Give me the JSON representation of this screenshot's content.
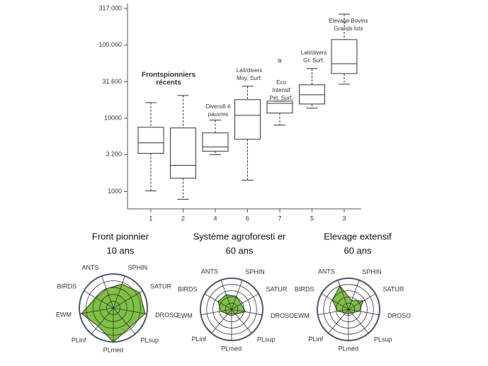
{
  "chart_data": [
    {
      "type": "box",
      "log_scale": true,
      "categories": [
        "1",
        "2",
        "4",
        "6",
        "7",
        "5",
        "3"
      ],
      "whisker_low": [
        1020,
        783,
        3180,
        1430,
        8080,
        13800,
        29300
      ],
      "q1": [
        3320,
        1520,
        3550,
        5180,
        11800,
        15700,
        40900
      ],
      "median": [
        4630,
        2280,
        4060,
        11000,
        16000,
        21000,
        55800
      ],
      "q3": [
        7550,
        7390,
        6320,
        18000,
        17200,
        28700,
        119000
      ],
      "whisker_high": [
        16400,
        20500,
        9440,
        27400,
        17200,
        47800,
        265000
      ],
      "outliers": [
        [],
        [],
        [],
        [],
        [
          61100
        ],
        [],
        []
      ],
      "ylim": [
        580,
        370000
      ],
      "yticks": [
        1000,
        {
          "value": 3200,
          "label": "3.200"
        },
        10000,
        {
          "value": 31600,
          "label": "31.600"
        },
        {
          "value": 100000,
          "label": "100.000"
        },
        {
          "value": 317000,
          "label": "317.000"
        }
      ],
      "annotations": [
        [
          "Frontspionniers",
          "récents"
        ],
        [
          "Diversifi é",
          "pauvres"
        ],
        [
          "Lait/divers",
          "Moy. Surf."
        ],
        [
          "Eco",
          "Intensif",
          "Pet. Surf."
        ],
        [
          "Lait/divers",
          "Gr. Surf."
        ],
        [
          "Elevage Bovins",
          "Grands lots"
        ]
      ]
    },
    {
      "type": "radar",
      "title": "Front pionnier",
      "subtitle": "10 ans",
      "color": "#7dc242",
      "categories": [
        "SPHIN",
        "SATUR",
        "DROSO",
        "PLsup",
        "PLmed",
        "PLinf",
        "EWM",
        "BIRDS",
        "ANTS"
      ],
      "values": [
        0.75,
        0.9,
        0.95,
        0.75,
        1.0,
        0.7,
        0.95,
        0.6,
        0.6
      ],
      "rlim": [
        0,
        1
      ],
      "rticks": [
        0.2,
        0.4,
        0.6,
        0.8,
        1
      ]
    },
    {
      "type": "radar",
      "title": "Système agroforesti er",
      "subtitle": "60 ans",
      "color": "#7dc242",
      "categories": [
        "SPHIN",
        "SATUR",
        "DROSO",
        "PLsup",
        "PLmed",
        "PLinf",
        "EWM",
        "BIRDS",
        "ANTS"
      ],
      "values": [
        0.45,
        0.35,
        0.45,
        0.2,
        0.15,
        0.2,
        0.35,
        0.5,
        0.5
      ],
      "rlim": [
        0,
        1
      ],
      "rticks": [
        0.2,
        0.4,
        0.6,
        0.8,
        1
      ]
    },
    {
      "type": "radar",
      "title": "Elevage extensif",
      "subtitle": "60 ans",
      "color": "#7dc242",
      "categories": [
        "SPHIN",
        "SATUR",
        "DROSO",
        "PLsup",
        "PLmed",
        "PLinf",
        "EWM",
        "BIRDS",
        "ANTS"
      ],
      "values": [
        0.3,
        0.55,
        0.35,
        0.15,
        0.15,
        0.15,
        0.35,
        0.6,
        0.8
      ],
      "rlim": [
        0,
        1
      ],
      "rticks": [
        0.2,
        0.4,
        0.6,
        0.8,
        1
      ]
    }
  ]
}
